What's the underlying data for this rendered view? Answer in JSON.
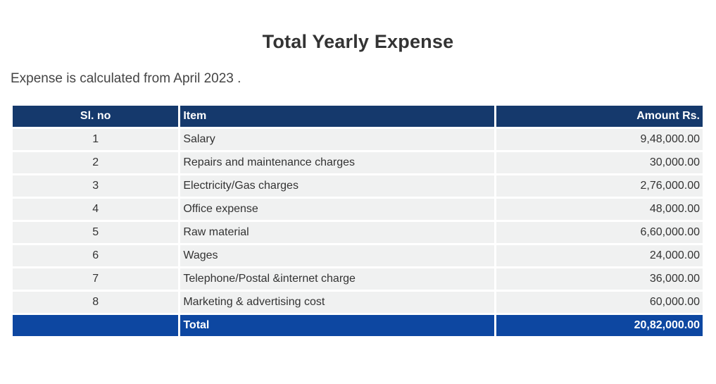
{
  "title": "Total Yearly Expense",
  "intro": "Expense is calculated from April 2023 .",
  "table": {
    "headers": {
      "sl_no": "Sl. no",
      "item": "Item",
      "amount": "Amount Rs."
    },
    "rows": [
      {
        "sl": "1",
        "item": "Salary",
        "amount": "9,48,000.00"
      },
      {
        "sl": "2",
        "item": "Repairs and maintenance charges",
        "amount": "30,000.00"
      },
      {
        "sl": "3",
        "item": "Electricity/Gas charges",
        "amount": "2,76,000.00"
      },
      {
        "sl": "4",
        "item": "Office expense",
        "amount": "48,000.00"
      },
      {
        "sl": "5",
        "item": "Raw material",
        "amount": "6,60,000.00"
      },
      {
        "sl": "6",
        "item": "Wages",
        "amount": "24,000.00"
      },
      {
        "sl": "7",
        "item": "Telephone/Postal &internet charge",
        "amount": "36,000.00"
      },
      {
        "sl": "8",
        "item": "Marketing & advertising cost",
        "amount": "60,000.00"
      }
    ],
    "total": {
      "sl": "",
      "label": "Total",
      "amount": "20,82,000.00"
    }
  },
  "colors": {
    "header_bg": "#15396c",
    "total_bg": "#0d47a1",
    "row_bg": "#f0f1f1"
  }
}
